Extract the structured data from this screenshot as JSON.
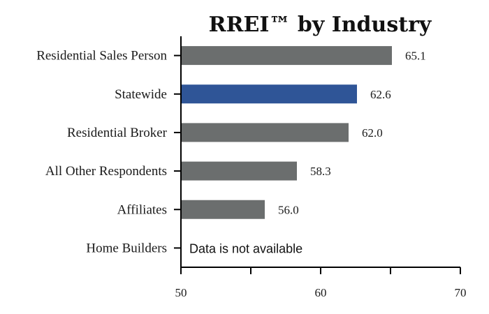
{
  "chart_data": {
    "type": "bar",
    "orientation": "horizontal",
    "title": "RREI™ by Industry",
    "xlabel": "",
    "ylabel": "",
    "xlim": [
      50,
      70
    ],
    "xticks": [
      "50",
      "60",
      "70"
    ],
    "categories": [
      "Residential Sales Person",
      "Statewide",
      "Residential Broker",
      "All Other Respondents",
      "Affiliates",
      "Home Builders"
    ],
    "values": [
      65.1,
      62.6,
      62.0,
      58.3,
      56.0,
      null
    ],
    "value_labels": [
      "65.1",
      "62.6",
      "62.0",
      "58.3",
      "56.0",
      ""
    ],
    "missing_note": "Data is not available",
    "highlight_category": "Statewide",
    "colors": {
      "default": "#6b6e6e",
      "highlight": "#2f5597"
    },
    "grid": false,
    "legend": "none"
  }
}
